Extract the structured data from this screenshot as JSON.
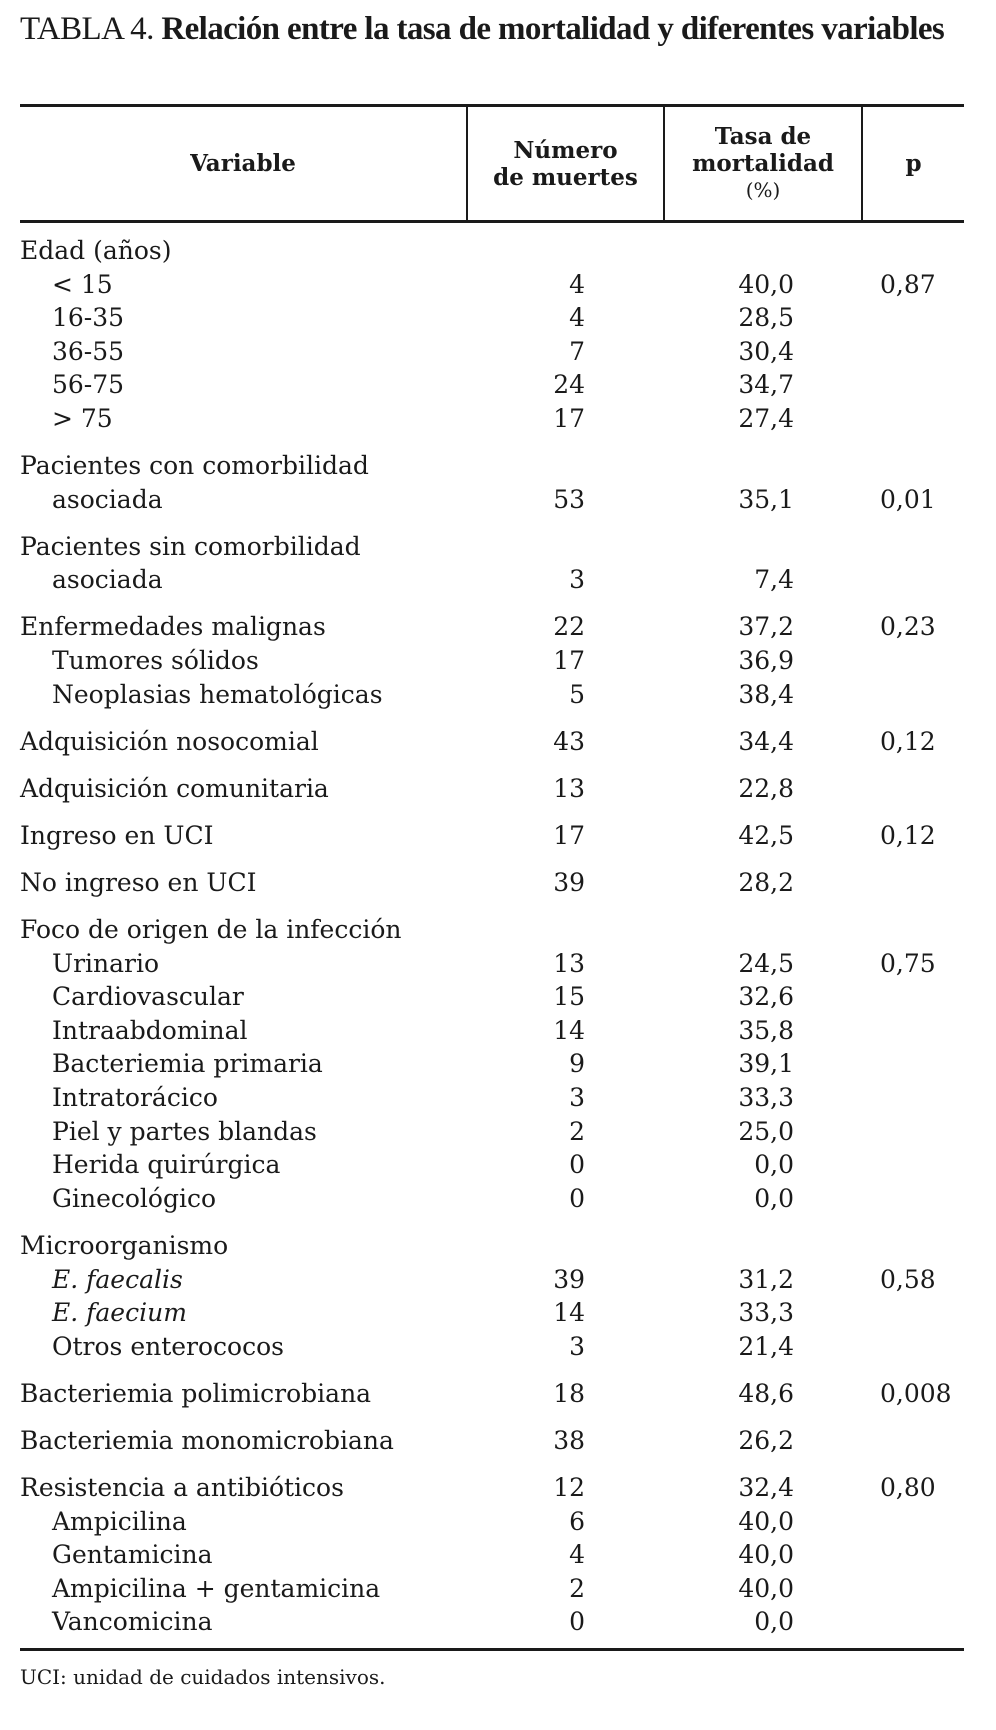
{
  "title": {
    "prefix": "TABLA 4.",
    "text": "Relación entre la tasa de mortalidad y diferentes variables"
  },
  "headers": {
    "variable": "Variable",
    "deaths_1": "Número",
    "deaths_2": "de muertes",
    "rate_1": "Tasa de",
    "rate_2": "mortalidad",
    "rate_3": "(%)",
    "p": "p"
  },
  "rows": [
    {
      "label": "Edad (años)",
      "indent": false,
      "group_start": false
    },
    {
      "label": "< 15",
      "indent": true,
      "deaths": "4",
      "rate": "40,0",
      "p": "0,87"
    },
    {
      "label": "16-35",
      "indent": true,
      "deaths": "4",
      "rate": "28,5"
    },
    {
      "label": "36-55",
      "indent": true,
      "deaths": "7",
      "rate": "30,4"
    },
    {
      "label": "56-75",
      "indent": true,
      "deaths": "24",
      "rate": "34,7"
    },
    {
      "label": "> 75",
      "indent": true,
      "deaths": "17",
      "rate": "27,4"
    },
    {
      "label": "Pacientes con comorbilidad",
      "group_start": true
    },
    {
      "label": "asociada",
      "indent": true,
      "deaths": "53",
      "rate": "35,1",
      "p": "0,01"
    },
    {
      "label": "Pacientes sin comorbilidad",
      "group_start": true
    },
    {
      "label": "asociada",
      "indent": true,
      "deaths": "3",
      "rate": "7,4"
    },
    {
      "label": "Enfermedades malignas",
      "group_start": true,
      "deaths": "22",
      "rate": "37,2",
      "p": "0,23"
    },
    {
      "label": "Tumores sólidos",
      "indent": true,
      "deaths": "17",
      "rate": "36,9"
    },
    {
      "label": "Neoplasias hematológicas",
      "indent": true,
      "deaths": "5",
      "rate": "38,4"
    },
    {
      "label": "Adquisición nosocomial",
      "group_start": true,
      "deaths": "43",
      "rate": "34,4",
      "p": "0,12"
    },
    {
      "label": "Adquisición comunitaria",
      "group_start": true,
      "deaths": "13",
      "rate": "22,8"
    },
    {
      "label": "Ingreso en UCI",
      "group_start": true,
      "deaths": "17",
      "rate": "42,5",
      "p": "0,12"
    },
    {
      "label": "No ingreso en UCI",
      "group_start": true,
      "deaths": "39",
      "rate": "28,2"
    },
    {
      "label": "Foco de origen de la infección",
      "group_start": true
    },
    {
      "label": "Urinario",
      "indent": true,
      "deaths": "13",
      "rate": "24,5",
      "p": "0,75"
    },
    {
      "label": "Cardiovascular",
      "indent": true,
      "deaths": "15",
      "rate": "32,6"
    },
    {
      "label": "Intraabdominal",
      "indent": true,
      "deaths": "14",
      "rate": "35,8"
    },
    {
      "label": "Bacteriemia primaria",
      "indent": true,
      "deaths": "9",
      "rate": "39,1"
    },
    {
      "label": "Intratorácico",
      "indent": true,
      "deaths": "3",
      "rate": "33,3"
    },
    {
      "label": "Piel y partes blandas",
      "indent": true,
      "deaths": "2",
      "rate": "25,0"
    },
    {
      "label": "Herida quirúrgica",
      "indent": true,
      "deaths": "0",
      "rate": "0,0"
    },
    {
      "label": "Ginecológico",
      "indent": true,
      "deaths": "0",
      "rate": "0,0"
    },
    {
      "label": "Microorganismo",
      "group_start": true
    },
    {
      "label": "E. faecalis",
      "indent": true,
      "italic": true,
      "deaths": "39",
      "rate": "31,2",
      "p": "0,58"
    },
    {
      "label": "E. faecium",
      "indent": true,
      "italic": true,
      "deaths": "14",
      "rate": "33,3"
    },
    {
      "label": "Otros enterococos",
      "indent": true,
      "deaths": "3",
      "rate": "21,4"
    },
    {
      "label": "Bacteriemia polimicrobiana",
      "group_start": true,
      "deaths": "18",
      "rate": "48,6",
      "p": "0,008"
    },
    {
      "label": "Bacteriemia monomicrobiana",
      "group_start": true,
      "deaths": "38",
      "rate": "26,2"
    },
    {
      "label": "Resistencia a antibióticos",
      "group_start": true,
      "deaths": "12",
      "rate": "32,4",
      "p": "0,80"
    },
    {
      "label": "Ampicilina",
      "indent": true,
      "deaths": "6",
      "rate": "40,0"
    },
    {
      "label": "Gentamicina",
      "indent": true,
      "deaths": "4",
      "rate": "40,0"
    },
    {
      "label": "Ampicilina + gentamicina",
      "indent": true,
      "deaths": "2",
      "rate": "40,0"
    },
    {
      "label": "Vancomicina",
      "indent": true,
      "deaths": "0",
      "rate": "0,0"
    }
  ],
  "footnote": "UCI: unidad de cuidados intensivos."
}
